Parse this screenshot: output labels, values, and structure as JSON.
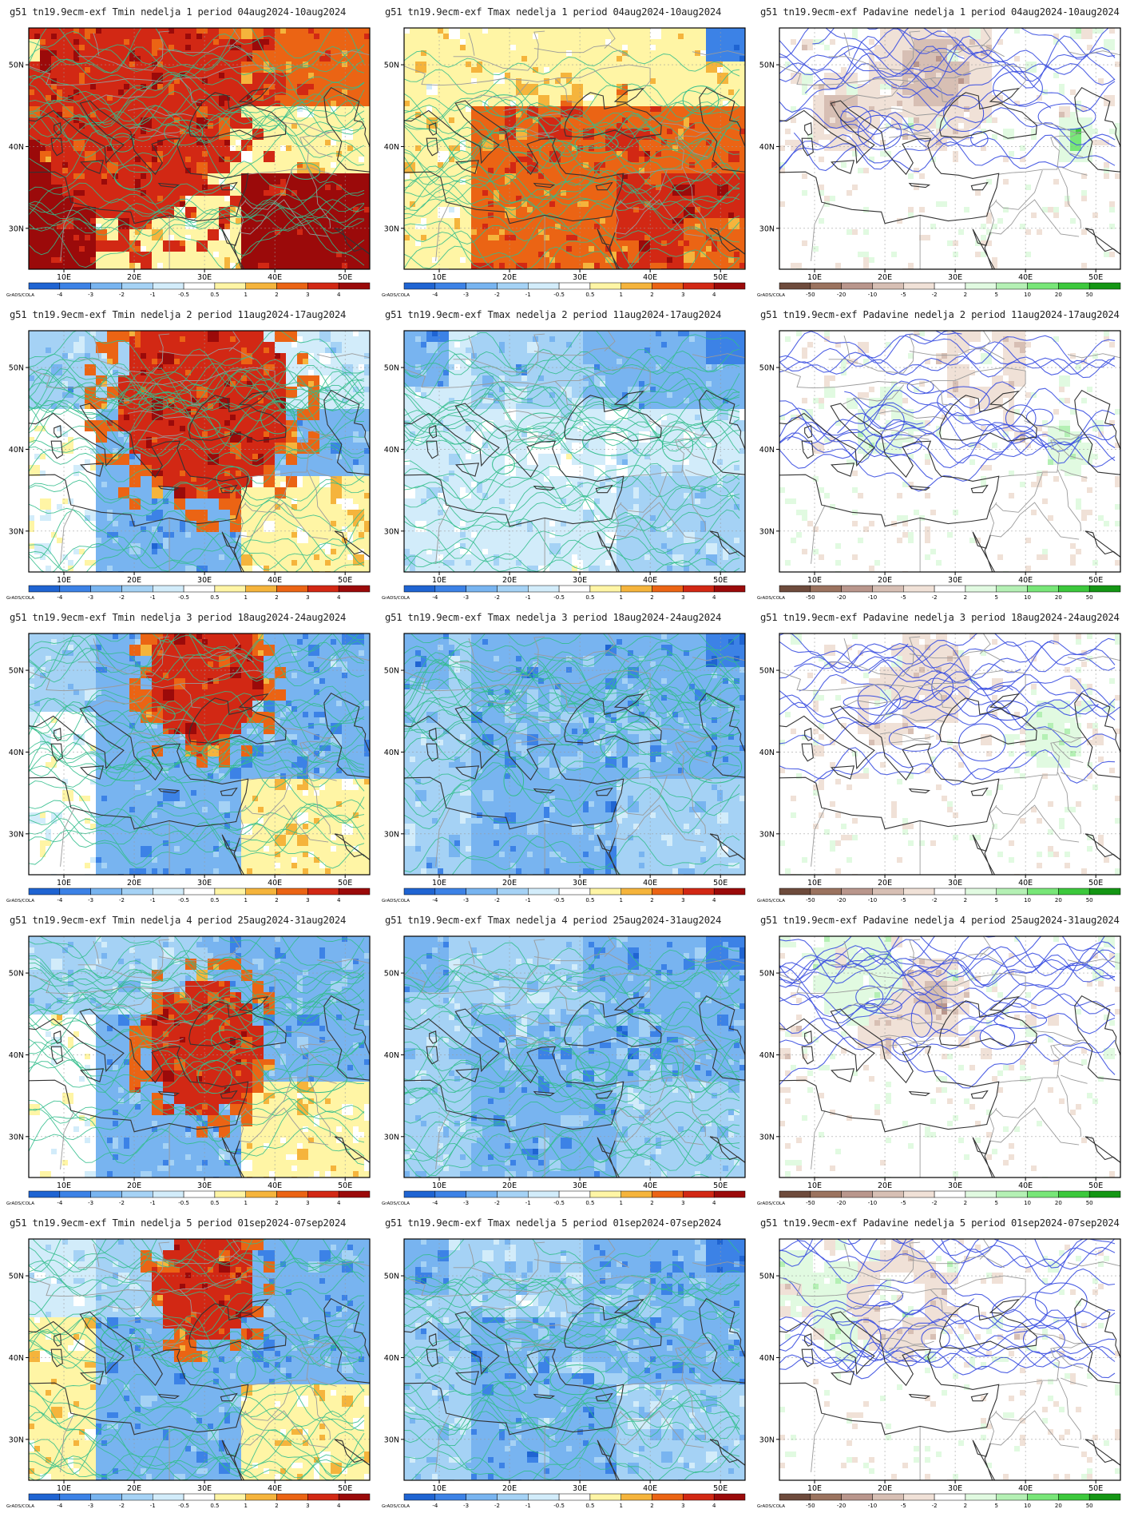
{
  "panels": [
    {
      "title": "g51 tn19.9ecm-exf Tmin nedelja 1 period 04aug2024-10aug2024",
      "variable": "tmin",
      "week": 1
    },
    {
      "title": "g51 tn19.9ecm-exf Tmax nedelja 1 period 04aug2024-10aug2024",
      "variable": "tmax",
      "week": 1
    },
    {
      "title": "g51 tn19.9ecm-exf Padavine nedelja 1 period 04aug2024-10aug2024",
      "variable": "padavine",
      "week": 1
    },
    {
      "title": "g51 tn19.9ecm-exf Tmin nedelja 2 period 11aug2024-17aug2024",
      "variable": "tmin",
      "week": 2
    },
    {
      "title": "g51 tn19.9ecm-exf Tmax nedelja 2 period 11aug2024-17aug2024",
      "variable": "tmax",
      "week": 2
    },
    {
      "title": "g51 tn19.9ecm-exf Padavine nedelja 2 period 11aug2024-17aug2024",
      "variable": "padavine",
      "week": 2
    },
    {
      "title": "g51 tn19.9ecm-exf Tmin nedelja 3 period 18aug2024-24aug2024",
      "variable": "tmin",
      "week": 3
    },
    {
      "title": "g51 tn19.9ecm-exf Tmax nedelja 3 period 18aug2024-24aug2024",
      "variable": "tmax",
      "week": 3
    },
    {
      "title": "g51 tn19.9ecm-exf Padavine nedelja 3 period 18aug2024-24aug2024",
      "variable": "padavine",
      "week": 3
    },
    {
      "title": "g51 tn19.9ecm-exf Tmin nedelja 4 period 25aug2024-31aug2024",
      "variable": "tmin",
      "week": 4
    },
    {
      "title": "g51 tn19.9ecm-exf Tmax nedelja 4 period 25aug2024-31aug2024",
      "variable": "tmax",
      "week": 4
    },
    {
      "title": "g51 tn19.9ecm-exf Padavine nedelja 4 period 25aug2024-31aug2024",
      "variable": "padavine",
      "week": 4
    },
    {
      "title": "g51 tn19.9ecm-exf Tmin nedelja 5 period 01sep2024-07sep2024",
      "variable": "tmin",
      "week": 5
    },
    {
      "title": "g51 tn19.9ecm-exf Tmax nedelja 5 period 01sep2024-07sep2024",
      "variable": "tmax",
      "week": 5
    },
    {
      "title": "g51 tn19.9ecm-exf Padavine nedelja 5 period 01sep2024-07sep2024",
      "variable": "padavine",
      "week": 5
    }
  ],
  "lon_labels": [
    "10E",
    "20E",
    "30E",
    "40E",
    "50E"
  ],
  "lat_labels": [
    "50N",
    "40N",
    "30N"
  ],
  "credit": "GrADS/COLA",
  "scales": {
    "temperature": {
      "labels": [
        "-4",
        "-3",
        "-2",
        "-1",
        "-0.5",
        "0.5",
        "1",
        "2",
        "3",
        "4"
      ],
      "colors": [
        "#1f64d2",
        "#3c82e6",
        "#78b4f0",
        "#a5d2f5",
        "#d2ecfa",
        "#ffffff",
        "#fff5a5",
        "#f5b43c",
        "#eb6414",
        "#d22814",
        "#9b0a0a"
      ]
    },
    "precipitation": {
      "labels": [
        "-50",
        "-20",
        "-10",
        "-5",
        "-2",
        "2",
        "5",
        "10",
        "20",
        "50"
      ],
      "colors": [
        "#6e4b3c",
        "#9b735f",
        "#b9968c",
        "#d7bfb4",
        "#f0e1d7",
        "#ffffff",
        "#e1fae1",
        "#b4f0b4",
        "#78e678",
        "#3cc83c",
        "#149614"
      ]
    }
  },
  "contour_colors": {
    "temperature": "#32be8c",
    "precipitation": "#3c50e1"
  },
  "border_colors": {
    "coast": "#333333",
    "country": "#9a9a9a"
  }
}
